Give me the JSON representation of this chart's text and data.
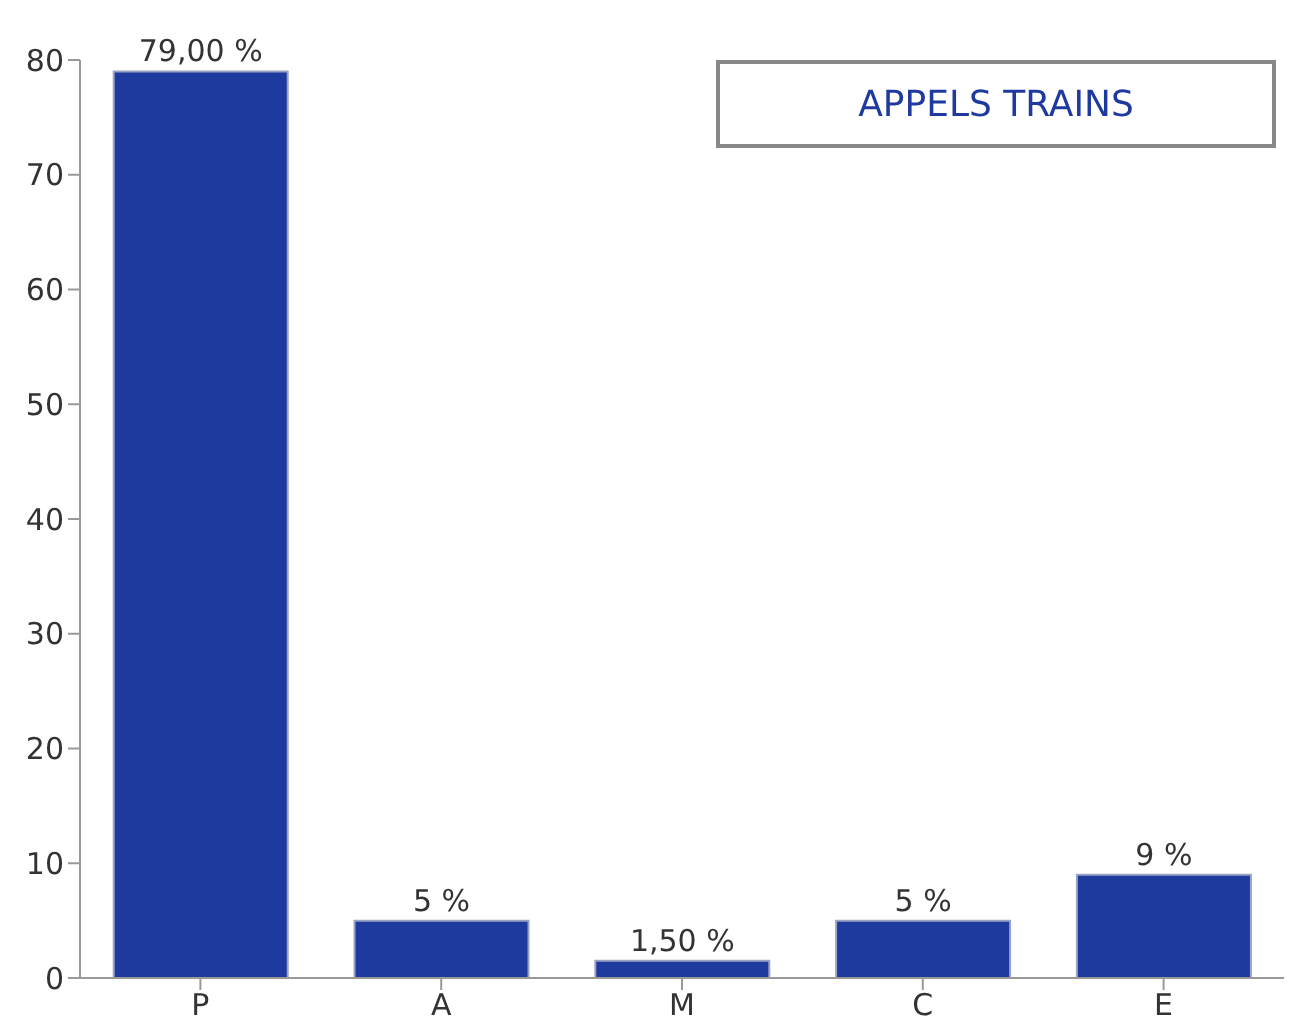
{
  "chart_data": {
    "type": "bar",
    "title": "APPELS TRAINS",
    "categories": [
      "P",
      "A",
      "M",
      "C",
      "E"
    ],
    "values": [
      79,
      5,
      1.5,
      5,
      9
    ],
    "value_labels": [
      "79,00 %",
      "5 %",
      "1,50 %",
      "5 %",
      "9 %"
    ],
    "color": "#1f3a9e",
    "ylim": [
      0,
      80
    ],
    "yticks": [
      0,
      10,
      20,
      30,
      40,
      50,
      60,
      70,
      80
    ]
  }
}
